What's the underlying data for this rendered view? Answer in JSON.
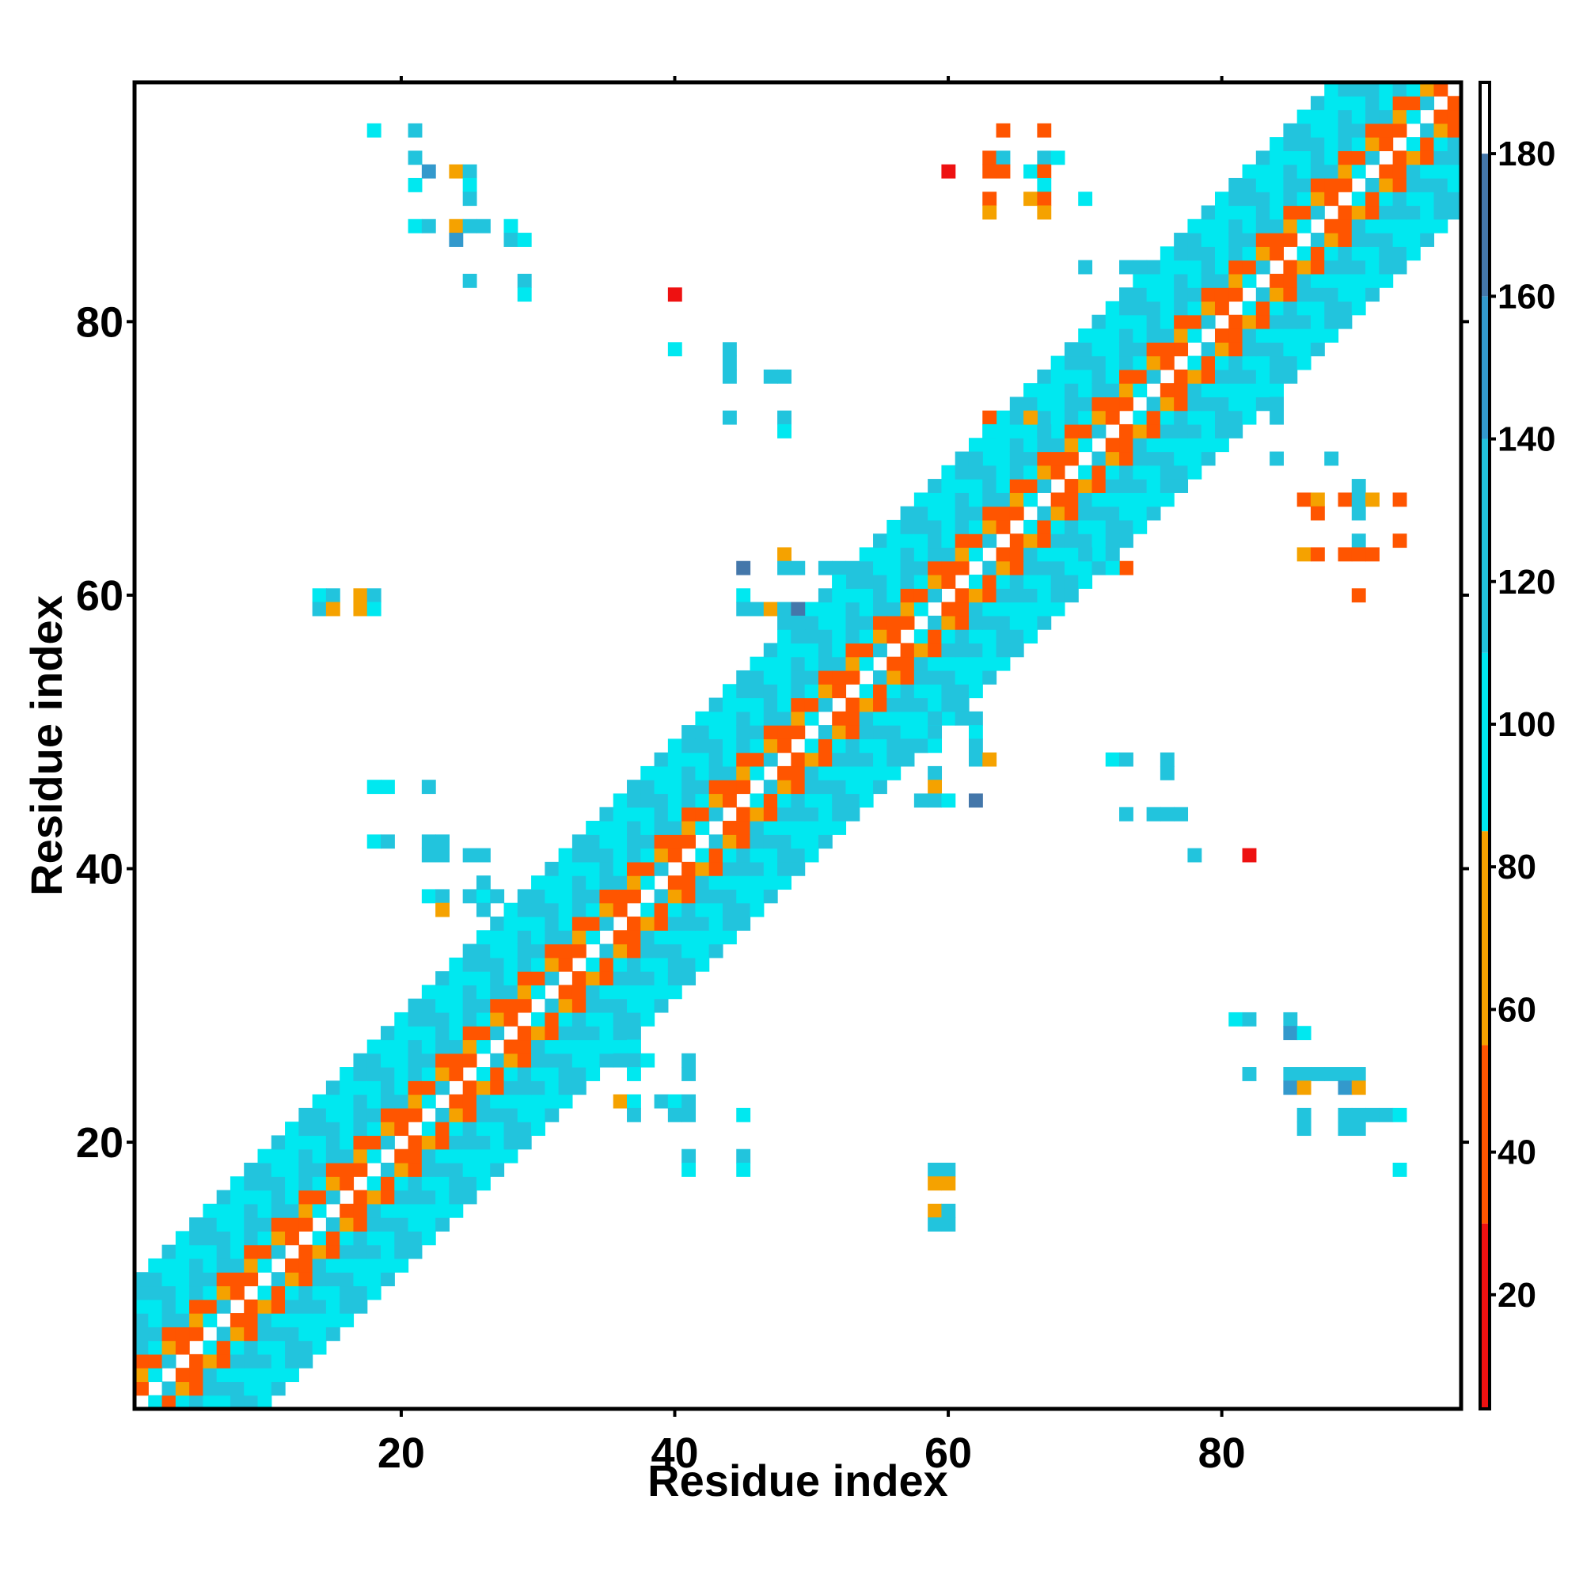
{
  "chart_data": {
    "type": "heatmap",
    "title": "",
    "xlabel": "Residue index",
    "ylabel": "Residue index",
    "xlim": [
      1,
      97
    ],
    "ylim": [
      1,
      97
    ],
    "x_ticks": [
      20,
      40,
      60,
      80
    ],
    "x_tick_labels": [
      "20",
      "40",
      "60",
      "80"
    ],
    "y_ticks": [
      20,
      40,
      60,
      80
    ],
    "y_tick_labels": [
      "20",
      "40",
      "60",
      "80"
    ],
    "colorbar": {
      "min": 4,
      "max": 190,
      "ticks": [
        20,
        40,
        60,
        80,
        100,
        120,
        140,
        160,
        180
      ],
      "tick_labels": [
        "20",
        "40",
        "60",
        "80",
        "100",
        "120",
        "140",
        "160",
        "180"
      ],
      "color_bands": [
        {
          "from": 4,
          "to": 30,
          "color": "#ee1111"
        },
        {
          "from": 30,
          "to": 55,
          "color": "#ff5500"
        },
        {
          "from": 55,
          "to": 85,
          "color": "#f5a200"
        },
        {
          "from": 85,
          "to": 110,
          "color": "#00e8f0"
        },
        {
          "from": 110,
          "to": 140,
          "color": "#22c4dd"
        },
        {
          "from": 140,
          "to": 160,
          "color": "#3399cc"
        },
        {
          "from": 160,
          "to": 180,
          "color": "#4477aa"
        },
        {
          "from": 180,
          "to": 190,
          "color": "#ffffff"
        }
      ]
    },
    "grid": false,
    "legend": "colorbar-right",
    "diagonal_band_width": 9,
    "off_diagonal_cells": [
      [
        18,
        94,
        100
      ],
      [
        21,
        94,
        115
      ],
      [
        21,
        92,
        125
      ],
      [
        22,
        91,
        155
      ],
      [
        21,
        90,
        100
      ],
      [
        24,
        91,
        75
      ],
      [
        25,
        91,
        115
      ],
      [
        25,
        90,
        100
      ],
      [
        25,
        89,
        110
      ],
      [
        21,
        87,
        100
      ],
      [
        22,
        87,
        125
      ],
      [
        24,
        87,
        80
      ],
      [
        25,
        87,
        120
      ],
      [
        26,
        87,
        130
      ],
      [
        24,
        86,
        155
      ],
      [
        28,
        87,
        100
      ],
      [
        28,
        86,
        120
      ],
      [
        29,
        86,
        100
      ],
      [
        25,
        83,
        120
      ],
      [
        29,
        83,
        115
      ],
      [
        29,
        82,
        100
      ],
      [
        14,
        60,
        100
      ],
      [
        15,
        60,
        110
      ],
      [
        17,
        60,
        75
      ],
      [
        18,
        60,
        120
      ],
      [
        14,
        59,
        110
      ],
      [
        15,
        59,
        80
      ],
      [
        17,
        59,
        75
      ],
      [
        18,
        59,
        95
      ],
      [
        18,
        46,
        100
      ],
      [
        19,
        46,
        95
      ],
      [
        22,
        46,
        115
      ],
      [
        18,
        42,
        100
      ],
      [
        19,
        42,
        120
      ],
      [
        22,
        42,
        115
      ],
      [
        23,
        42,
        115
      ],
      [
        22,
        41,
        130
      ],
      [
        23,
        41,
        115
      ],
      [
        25,
        41,
        120
      ],
      [
        26,
        41,
        130
      ],
      [
        22,
        38,
        100
      ],
      [
        23,
        38,
        120
      ],
      [
        25,
        38,
        115
      ],
      [
        26,
        38,
        100
      ],
      [
        27,
        38,
        120
      ],
      [
        23,
        37,
        75
      ],
      [
        26,
        37,
        110
      ],
      [
        26,
        39,
        120
      ],
      [
        37,
        27,
        100
      ],
      [
        36,
        26,
        110
      ],
      [
        37,
        26,
        120
      ],
      [
        38,
        26,
        100
      ],
      [
        37,
        25,
        100
      ],
      [
        41,
        26,
        115
      ],
      [
        41,
        25,
        125
      ],
      [
        36,
        23,
        75
      ],
      [
        37,
        23,
        100
      ],
      [
        39,
        23,
        120
      ],
      [
        40,
        23,
        100
      ],
      [
        41,
        23,
        130
      ],
      [
        37,
        22,
        120
      ],
      [
        40,
        22,
        115
      ],
      [
        41,
        22,
        110
      ],
      [
        45,
        22,
        105
      ],
      [
        41,
        19,
        110
      ],
      [
        45,
        19,
        110
      ],
      [
        41,
        18,
        100
      ],
      [
        45,
        18,
        100
      ],
      [
        40,
        82,
        25
      ],
      [
        40,
        78,
        100
      ],
      [
        44,
        78,
        120
      ],
      [
        44,
        77,
        110
      ],
      [
        44,
        76,
        125
      ],
      [
        47,
        76,
        120
      ],
      [
        48,
        76,
        120
      ],
      [
        44,
        73,
        120
      ],
      [
        48,
        73,
        125
      ],
      [
        48,
        72,
        100
      ],
      [
        64,
        94,
        40
      ],
      [
        67,
        94,
        40
      ],
      [
        63,
        92,
        30
      ],
      [
        64,
        92,
        110
      ],
      [
        67,
        92,
        110
      ],
      [
        68,
        92,
        105
      ],
      [
        60,
        91,
        25
      ],
      [
        63,
        91,
        40
      ],
      [
        64,
        91,
        30
      ],
      [
        66,
        91,
        100
      ],
      [
        67,
        91,
        40
      ],
      [
        67,
        90,
        100
      ],
      [
        63,
        89,
        30
      ],
      [
        66,
        89,
        55
      ],
      [
        67,
        89,
        40
      ],
      [
        70,
        89,
        100
      ],
      [
        63,
        88,
        75
      ],
      [
        67,
        88,
        75
      ],
      [
        70,
        84,
        120
      ],
      [
        73,
        84,
        120
      ],
      [
        74,
        84,
        120
      ],
      [
        45,
        62,
        160
      ],
      [
        48,
        63,
        75
      ],
      [
        48,
        62,
        110
      ],
      [
        49,
        62,
        110
      ],
      [
        51,
        62,
        110
      ],
      [
        52,
        62,
        120
      ],
      [
        52,
        61,
        100
      ],
      [
        45,
        60,
        100
      ],
      [
        45,
        59,
        125
      ],
      [
        46,
        59,
        120
      ],
      [
        47,
        59,
        75
      ],
      [
        48,
        59,
        120
      ],
      [
        49,
        59,
        160
      ],
      [
        48,
        58,
        115
      ],
      [
        49,
        58,
        125
      ],
      [
        49,
        57,
        130
      ],
      [
        59,
        51,
        130
      ],
      [
        61,
        51,
        120
      ],
      [
        62,
        51,
        115
      ],
      [
        62,
        50,
        100
      ],
      [
        57,
        49,
        130
      ],
      [
        58,
        49,
        120
      ],
      [
        59,
        49,
        100
      ],
      [
        62,
        49,
        110
      ],
      [
        62,
        48,
        125
      ],
      [
        63,
        48,
        70
      ],
      [
        59,
        47,
        130
      ],
      [
        59,
        46,
        75
      ],
      [
        58,
        45,
        120
      ],
      [
        59,
        45,
        125
      ],
      [
        60,
        45,
        95
      ],
      [
        62,
        45,
        160
      ],
      [
        72,
        48,
        100
      ],
      [
        73,
        48,
        120
      ],
      [
        76,
        48,
        130
      ],
      [
        76,
        47,
        125
      ],
      [
        73,
        44,
        130
      ],
      [
        75,
        44,
        125
      ],
      [
        76,
        44,
        120
      ],
      [
        77,
        44,
        115
      ],
      [
        78,
        41,
        110
      ],
      [
        82,
        41,
        25
      ],
      [
        59,
        18,
        115
      ],
      [
        60,
        18,
        130
      ],
      [
        59,
        17,
        75
      ],
      [
        60,
        17,
        75
      ],
      [
        59,
        15,
        75
      ],
      [
        60,
        15,
        110
      ],
      [
        59,
        14,
        115
      ],
      [
        60,
        14,
        120
      ],
      [
        81,
        29,
        100
      ],
      [
        82,
        29,
        110
      ],
      [
        85,
        29,
        110
      ],
      [
        85,
        28,
        140
      ],
      [
        86,
        28,
        105
      ],
      [
        82,
        25,
        120
      ],
      [
        85,
        25,
        120
      ],
      [
        86,
        25,
        120
      ],
      [
        87,
        25,
        115
      ],
      [
        88,
        25,
        125
      ],
      [
        89,
        25,
        115
      ],
      [
        90,
        25,
        120
      ],
      [
        85,
        24,
        150
      ],
      [
        86,
        24,
        75
      ],
      [
        89,
        24,
        140
      ],
      [
        90,
        24,
        75
      ],
      [
        86,
        22,
        130
      ],
      [
        89,
        22,
        120
      ],
      [
        90,
        22,
        115
      ],
      [
        91,
        22,
        115
      ],
      [
        92,
        22,
        120
      ],
      [
        93,
        22,
        100
      ],
      [
        86,
        21,
        120
      ],
      [
        89,
        21,
        110
      ],
      [
        90,
        21,
        110
      ],
      [
        93,
        18,
        100
      ],
      [
        84,
        74,
        110
      ],
      [
        84,
        73,
        120
      ],
      [
        84,
        70,
        125
      ],
      [
        88,
        70,
        110
      ],
      [
        90,
        68,
        110
      ],
      [
        86,
        67,
        40
      ],
      [
        87,
        67,
        75
      ],
      [
        89,
        67,
        30
      ],
      [
        90,
        67,
        110
      ],
      [
        91,
        67,
        75
      ],
      [
        93,
        67,
        30
      ],
      [
        87,
        66,
        40
      ],
      [
        90,
        66,
        110
      ],
      [
        90,
        64,
        115
      ],
      [
        93,
        64,
        40
      ],
      [
        86,
        63,
        75
      ],
      [
        87,
        63,
        30
      ],
      [
        89,
        63,
        40
      ],
      [
        90,
        63,
        30
      ],
      [
        91,
        63,
        30
      ],
      [
        90,
        60,
        30
      ],
      [
        63,
        73,
        40
      ],
      [
        66,
        73,
        75
      ],
      [
        63,
        72,
        100
      ],
      [
        67,
        72,
        130
      ],
      [
        62,
        70,
        125
      ],
      [
        72,
        63,
        115
      ],
      [
        73,
        62,
        40
      ],
      [
        70,
        63,
        110
      ],
      [
        72,
        62,
        100
      ]
    ]
  }
}
